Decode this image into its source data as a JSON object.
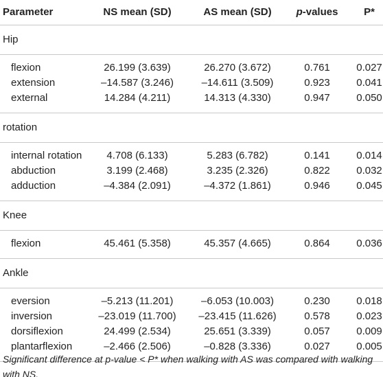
{
  "table": {
    "header": [
      "Parameter",
      "NS mean (SD)",
      "AS mean (SD)",
      "p-values",
      "P*"
    ],
    "sections": [
      {
        "title": "Hip",
        "rows": [
          [
            "flexion",
            "26.199 (3.639)",
            "26.270 (3.672)",
            "0.761",
            "0.027"
          ],
          [
            "extension",
            "–14.587 (3.246)",
            "–14.611 (3.509)",
            "0.923",
            "0.041"
          ],
          [
            "external",
            "14.284 (4.211)",
            "14.313 (4.330)",
            "0.947",
            "0.050"
          ]
        ]
      },
      {
        "title": "rotation",
        "rows": [
          [
            "internal rotation",
            "4.708 (6.133)",
            "5.283 (6.782)",
            "0.141",
            "0.014"
          ],
          [
            "abduction",
            "3.199 (2.468)",
            "3.235 (2.326)",
            "0.822",
            "0.032"
          ],
          [
            "adduction",
            "–4.384 (2.091)",
            "–4.372 (1.861)",
            "0.946",
            "0.045"
          ]
        ]
      },
      {
        "title": "Knee",
        "rows": [
          [
            "flexion",
            "45.461 (5.358)",
            "45.357 (4.665)",
            "0.864",
            "0.036"
          ]
        ]
      },
      {
        "title": "Ankle",
        "rows": [
          [
            "eversion",
            "–5.213 (11.201)",
            "–6.053 (10.003)",
            "0.230",
            "0.018"
          ],
          [
            "inversion",
            "–23.019 (11.700)",
            "–23.415 (11.626)",
            "0.578",
            "0.023"
          ],
          [
            "dorsiflexion",
            "24.499 (2.534)",
            "25.651 (3.339)",
            "0.057",
            "0.009"
          ],
          [
            "plantarflexion",
            "–2.466 (2.506)",
            "–0.828 (3.336)",
            "0.027",
            "0.005"
          ]
        ]
      }
    ]
  },
  "footnote": "Significant difference at p-value < P* when walking with AS was compared with walking with NS."
}
